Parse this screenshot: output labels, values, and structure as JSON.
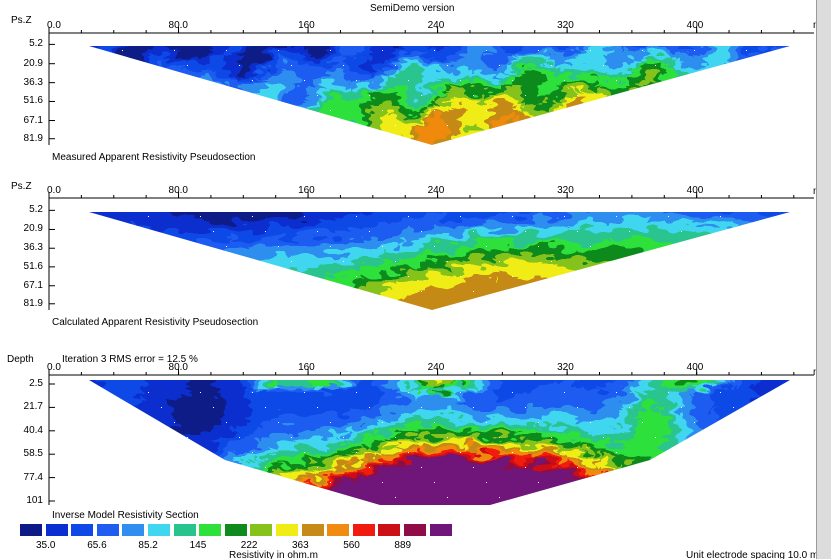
{
  "app": {
    "version_label": "SemiDemo version",
    "unit_spacing": "Unit electrode spacing 10.0 m"
  },
  "colors": {
    "scale": [
      "#0b1a86",
      "#0a2ecf",
      "#0f48e6",
      "#1f5cf0",
      "#2f8ef0",
      "#3fd6f0",
      "#29c48e",
      "#2ee03a",
      "#0f8a1c",
      "#86c21a",
      "#f0ec16",
      "#c58a18",
      "#f08a10",
      "#f01a0e",
      "#cc1018",
      "#8f0c46",
      "#70157a"
    ],
    "frame": "#000000"
  },
  "chart_data": [
    {
      "type": "heatmap",
      "caption": "Measured Apparent Resistivity Pseudosection",
      "y_axis_label": "Ps.Z",
      "x_unit": "m",
      "x_ticks": [
        0.0,
        80.0,
        160,
        240,
        320,
        400
      ],
      "x_tick_labels": [
        "0.0",
        "80.0",
        "160",
        "240",
        "320",
        "400"
      ],
      "xlim": [
        0,
        470
      ],
      "y_ticks": [
        "5.2",
        "20.9",
        "36.3",
        "51.6",
        "67.1",
        "81.9"
      ],
      "y_values": [
        5.2,
        20.9,
        36.3,
        51.6,
        67.1,
        81.9
      ],
      "ylim": [
        0,
        87
      ],
      "grid": false
    },
    {
      "type": "heatmap",
      "caption": "Calculated Apparent Resistivity Pseudosection",
      "y_axis_label": "Ps.Z",
      "x_unit": "m",
      "x_ticks": [
        0.0,
        80.0,
        160,
        240,
        320,
        400
      ],
      "x_tick_labels": [
        "0.0",
        "80.0",
        "160",
        "240",
        "320",
        "400"
      ],
      "xlim": [
        0,
        470
      ],
      "y_ticks": [
        "5.2",
        "20.9",
        "36.3",
        "51.6",
        "67.1",
        "81.9"
      ],
      "y_values": [
        5.2,
        20.9,
        36.3,
        51.6,
        67.1,
        81.9
      ],
      "ylim": [
        0,
        87
      ],
      "grid": false
    },
    {
      "type": "heatmap",
      "caption": "Inverse Model Resistivity Section",
      "y_axis_label": "Depth",
      "iteration_label": "Iteration 3 RMS error = 12.5 %",
      "x_unit": "m",
      "x_ticks": [
        0.0,
        80.0,
        160,
        240,
        320,
        400
      ],
      "x_tick_labels": [
        "0.0",
        "80.0",
        "160",
        "240",
        "320",
        "400"
      ],
      "xlim": [
        0,
        470
      ],
      "y_ticks": [
        "2.5",
        "21.7",
        "40.4",
        "58.5",
        "77.4",
        "101"
      ],
      "y_values": [
        2.5,
        21.7,
        40.4,
        58.5,
        77.4,
        101
      ],
      "ylim": [
        0,
        105
      ],
      "grid": false
    }
  ],
  "legend": {
    "labels": [
      "35.0",
      "65.6",
      "85.2",
      "145",
      "222",
      "363",
      "560",
      "889"
    ],
    "title": "Resistivity in ohm.m"
  }
}
